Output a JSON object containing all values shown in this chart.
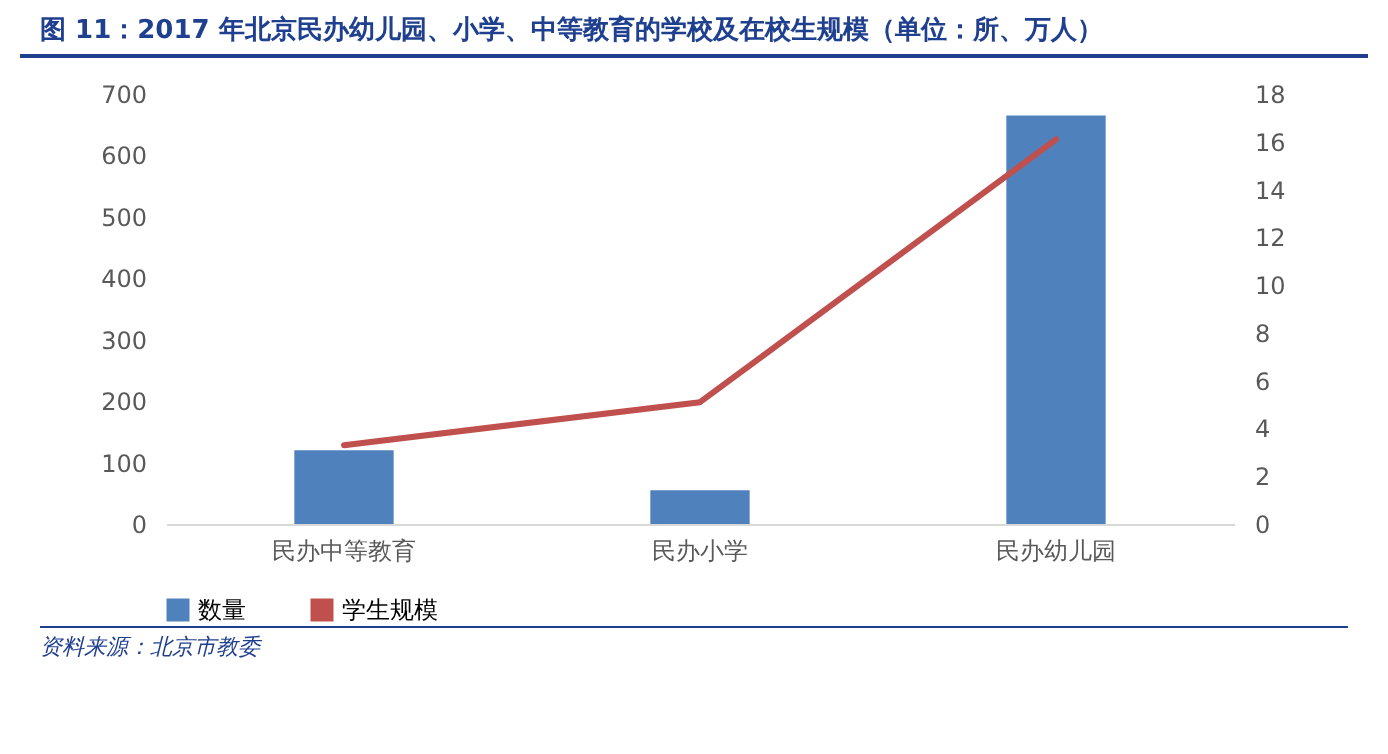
{
  "chart_data": {
    "type": "bar",
    "title": "图 11：2017 年北京民办幼儿园、小学、中等教育的学校及在校生规模（单位：所、万人）",
    "categories": [
      "民办中等教育",
      "民办小学",
      "民办幼儿园"
    ],
    "series": [
      {
        "name": "数量",
        "color": "#4f81bd",
        "values": [
          120,
          55,
          665
        ]
      },
      {
        "name": "学生规模",
        "type": "line",
        "axis": "y2",
        "color": "#c0504d",
        "values": [
          3.3,
          5.1,
          16.1
        ]
      }
    ],
    "ylim": [
      0,
      700
    ],
    "yticks": [
      0,
      100,
      200,
      300,
      400,
      500,
      600,
      700
    ],
    "y2lim": [
      0,
      18
    ],
    "y2ticks": [
      0,
      2,
      4,
      6,
      8,
      10,
      12,
      14,
      16,
      18
    ],
    "grid": false,
    "legend": "bottom",
    "annotations": [
      "资料来源：北京市教委"
    ]
  }
}
